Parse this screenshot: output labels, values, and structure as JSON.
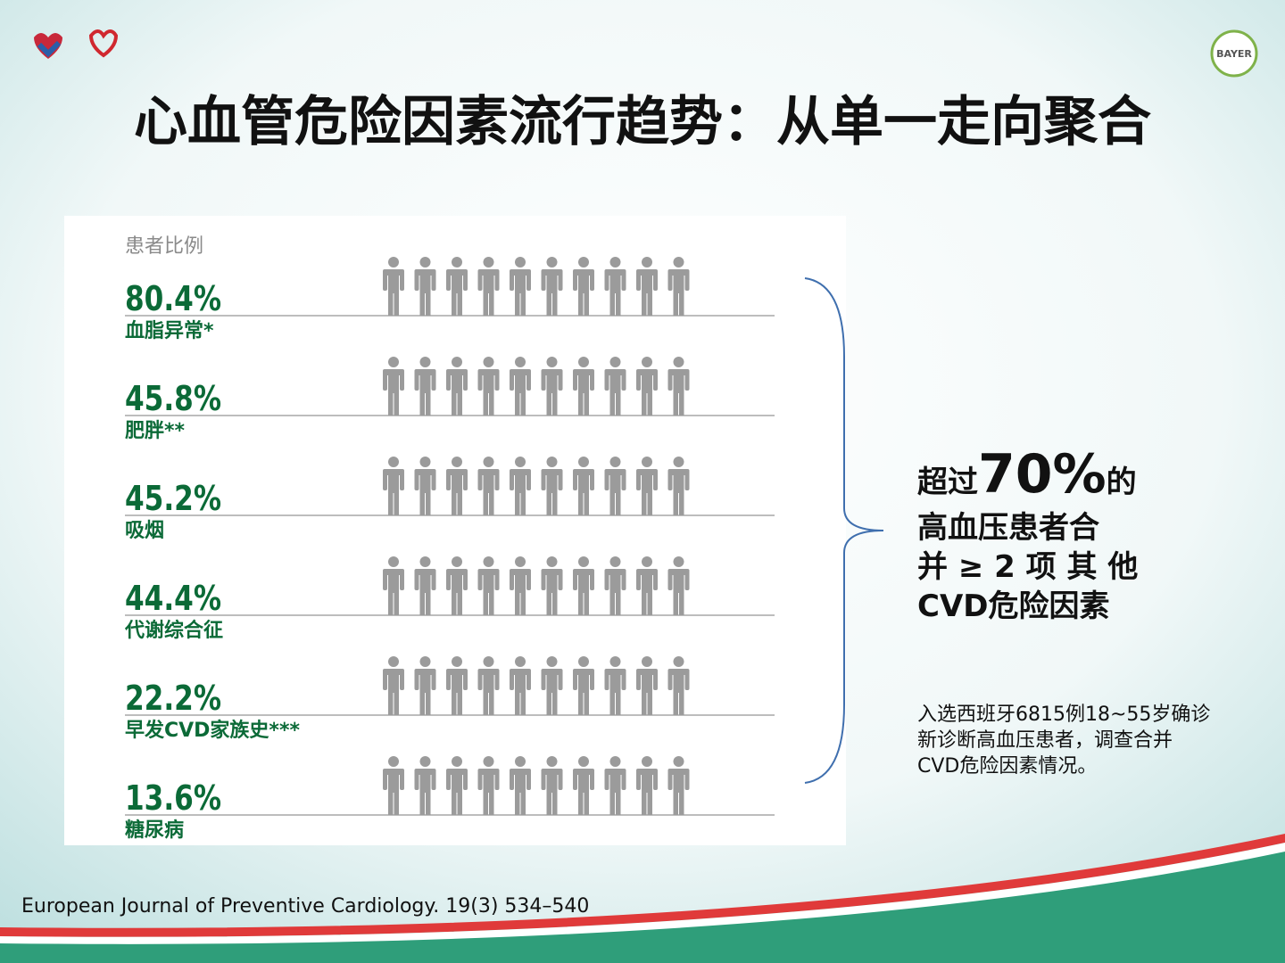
{
  "slide": {
    "title": "心血管危险因素流行趋势：从单一走向聚合",
    "logo_text": "BAYER",
    "key_message": {
      "prefix": "超过",
      "highlight": "70%",
      "suffix": "的",
      "lines": [
        "高血压患者合",
        "并 ≥ 2 项 其 他",
        "CVD危险因素"
      ]
    },
    "note": [
      "入选西班牙6815例18~55岁确诊",
      "新诊断高血压患者，调查合并",
      "CVD危险因素情况。"
    ],
    "source": "European Journal of Preventive Cardiology. 19(3) 534–540"
  },
  "chart_data": {
    "type": "pictogram",
    "y_label": "患者比例",
    "categories": [
      "血脂异常*",
      "肥胖**",
      "吸烟",
      "代谢综合征",
      "早发CVD家族史***",
      "糖尿病"
    ],
    "values": [
      80.4,
      45.8,
      45.2,
      44.4,
      22.2,
      13.6
    ],
    "value_labels": [
      "80.4%",
      "45.8%",
      "45.2%",
      "44.4%",
      "22.2%",
      "13.6%"
    ],
    "xlim": [
      0,
      100
    ],
    "color": "#0b6a37"
  }
}
